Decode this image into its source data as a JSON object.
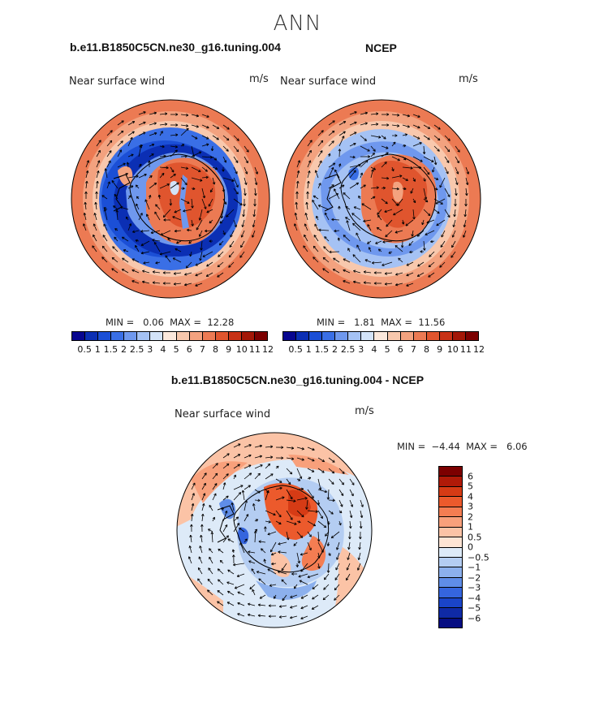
{
  "page_title": "ANN",
  "panels": {
    "model": {
      "title": "b.e11.B1850C5CN.ne30_g16.tuning.004",
      "var_label": "Near surface wind",
      "units": "m/s",
      "stats": "MIN =   0.06  MAX =  12.28"
    },
    "obs": {
      "title": "NCEP",
      "var_label": "Near surface wind",
      "units": "m/s",
      "stats": "MIN =   1.81  MAX =  11.56"
    },
    "diff": {
      "title": "b.e11.B1850C5CN.ne30_g16.tuning.004 - NCEP",
      "var_label": "Near surface wind",
      "units": "m/s",
      "stats": "MIN =  −4.44  MAX =   6.06"
    }
  },
  "colorbar_abs": {
    "colors": [
      "#08068f",
      "#0b2fb4",
      "#1b4fd6",
      "#3a6fe6",
      "#6f98ee",
      "#a5c2f4",
      "#d3e3f8",
      "#fbe8dc",
      "#f8c8ad",
      "#f3a27f",
      "#ec7a53",
      "#e0552e",
      "#c83216",
      "#a31707",
      "#7c0000"
    ],
    "labels": [
      "0.5",
      "1",
      "1.5",
      "2",
      "2.5",
      "3",
      "4",
      "5",
      "6",
      "7",
      "8",
      "9",
      "10",
      "11",
      "12"
    ]
  },
  "colorbar_diff": {
    "colors": [
      "#7c0000",
      "#b01a08",
      "#d63b15",
      "#ec5a2c",
      "#f47d52",
      "#f8a07b",
      "#fbc3a6",
      "#fde4d4",
      "#ddeaf8",
      "#b4cdf2",
      "#8cb0ed",
      "#5f8de8",
      "#3565de",
      "#1a44c8",
      "#0f2aa6",
      "#060d82"
    ],
    "labels": [
      "6",
      "5",
      "4",
      "3",
      "2",
      "1",
      "0.5",
      "0",
      "−0.5",
      "−1",
      "−2",
      "−3",
      "−4",
      "−5",
      "−6"
    ]
  },
  "map_data": {
    "projection": "south-polar stereographic",
    "field": "Near surface wind",
    "vectors": "wind direction arrows",
    "maps": [
      "b.e11.B1850C5CN.ne30_g16.tuning.004",
      "NCEP",
      "b.e11.B1850C5CN.ne30_g16.tuning.004 - NCEP"
    ]
  }
}
